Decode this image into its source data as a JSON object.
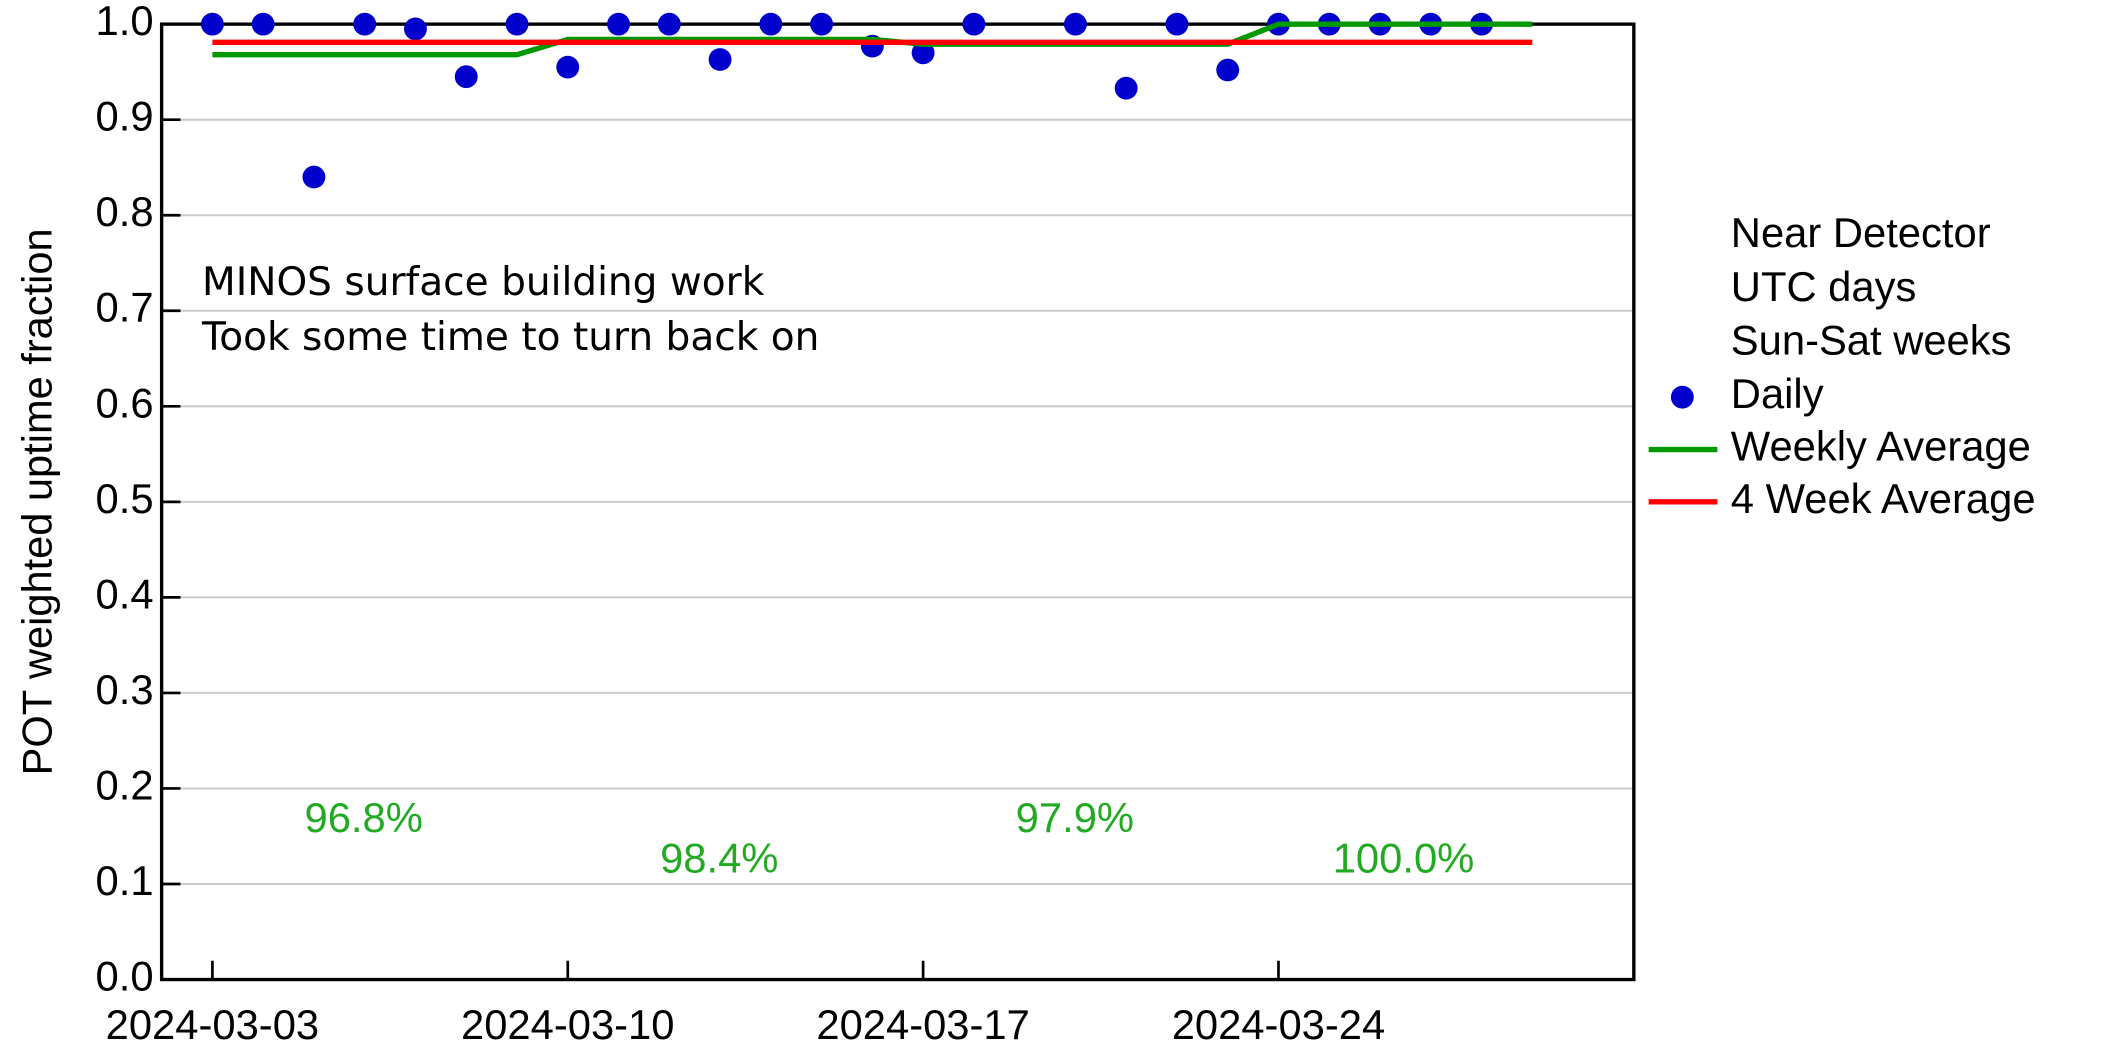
{
  "chart_data": {
    "type": "scatter",
    "ylabel": "POT weighted uptime fraction",
    "xlim": [
      "2024-03-02",
      "2024-03-31"
    ],
    "xticks": [
      "2024-03-03",
      "2024-03-10",
      "2024-03-17",
      "2024-03-24"
    ],
    "ylim": [
      0,
      1
    ],
    "yticks": [
      {
        "value": 0,
        "label": "0.0"
      },
      0.1,
      0.2,
      0.3,
      0.4,
      0.5,
      0.6,
      0.7,
      0.8,
      0.9,
      {
        "value": 1,
        "label": "1.0"
      }
    ],
    "grid": true,
    "legend_title": [
      "Near Detector",
      "UTC days",
      "Sun-Sat weeks"
    ],
    "legend_position": "right",
    "annotations": [
      "MINOS surface building work",
      "Took some time to turn back on",
      "96.8%",
      "98.4%",
      "97.9%",
      "100.0%"
    ],
    "series": [
      {
        "name": "Daily",
        "type": "scatter",
        "color": "#0000cc",
        "x": [
          "2024-03-03",
          "2024-03-04",
          "2024-03-05",
          "2024-03-06",
          "2024-03-07",
          "2024-03-08",
          "2024-03-09",
          "2024-03-10",
          "2024-03-11",
          "2024-03-12",
          "2024-03-13",
          "2024-03-14",
          "2024-03-15",
          "2024-03-16",
          "2024-03-17",
          "2024-03-18",
          "2024-03-19",
          "2024-03-20",
          "2024-03-21",
          "2024-03-22",
          "2024-03-23",
          "2024-03-24",
          "2024-03-25",
          "2024-03-26",
          "2024-03-27",
          "2024-03-28"
        ],
        "values": [
          1.0,
          1.0,
          0.84,
          1.0,
          0.995,
          0.945,
          1.0,
          0.955,
          1.0,
          1.0,
          0.963,
          1.0,
          1.0,
          0.977,
          0.97,
          1.0,
          null,
          1.0,
          0.933,
          1.0,
          0.952,
          1.0,
          1.0,
          1.0,
          1.0,
          1.0
        ]
      },
      {
        "name": "Weekly Average",
        "type": "line",
        "color": "#009900",
        "x": [
          "2024-03-03",
          "2024-03-09",
          "2024-03-10",
          "2024-03-16",
          "2024-03-17",
          "2024-03-23",
          "2024-03-24",
          "2024-03-29"
        ],
        "values": [
          0.968,
          0.968,
          0.984,
          0.984,
          0.979,
          0.979,
          1.0,
          1.0
        ]
      },
      {
        "name": "4 Week Average",
        "type": "line",
        "color": "#ff0000",
        "x": [
          "2024-03-03",
          "2024-03-29"
        ],
        "values": [
          0.981,
          0.981
        ]
      }
    ]
  }
}
